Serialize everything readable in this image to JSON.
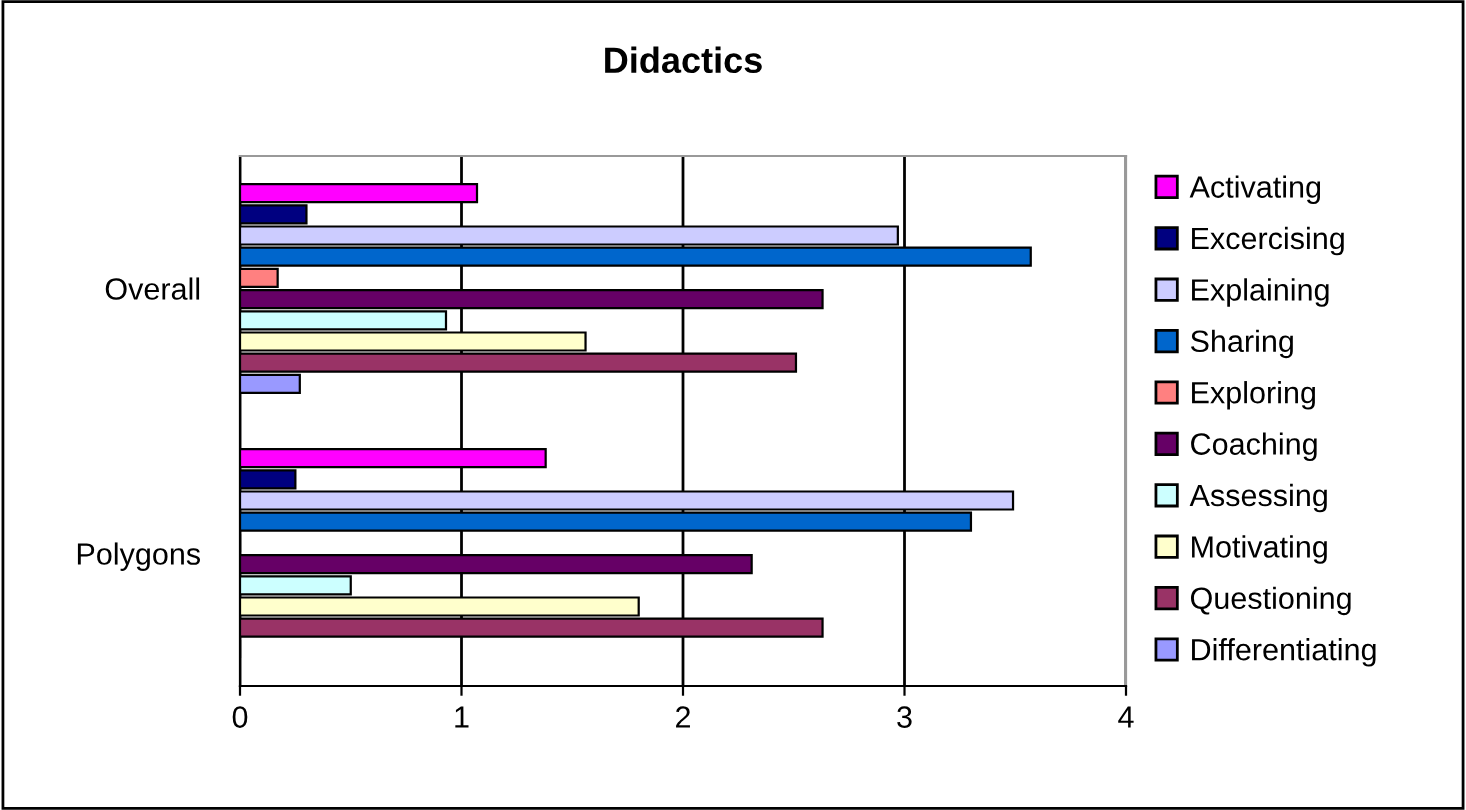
{
  "chart_data": {
    "type": "bar",
    "orientation": "horizontal",
    "title": "Didactics",
    "categories": [
      "Overall",
      "Polygons"
    ],
    "series": [
      {
        "name": "Activating",
        "color": "#ff00ff",
        "values": [
          1.07,
          1.38
        ]
      },
      {
        "name": "Excercising",
        "color": "#000080",
        "values": [
          0.3,
          0.25
        ]
      },
      {
        "name": "Explaining",
        "color": "#ccccff",
        "values": [
          2.97,
          3.49
        ]
      },
      {
        "name": "Sharing",
        "color": "#0066cc",
        "values": [
          3.57,
          3.3
        ]
      },
      {
        "name": "Exploring",
        "color": "#ff8080",
        "values": [
          0.17,
          0
        ]
      },
      {
        "name": "Coaching",
        "color": "#660066",
        "values": [
          2.63,
          2.31
        ]
      },
      {
        "name": "Assessing",
        "color": "#ccffff",
        "values": [
          0.93,
          0.5
        ]
      },
      {
        "name": "Motivating",
        "color": "#ffffcc",
        "values": [
          1.56,
          1.8
        ]
      },
      {
        "name": "Questioning",
        "color": "#993366",
        "values": [
          2.51,
          2.63
        ]
      },
      {
        "name": "Differentiating",
        "color": "#9999ff",
        "values": [
          0.27,
          0
        ]
      }
    ],
    "xlim": [
      0,
      4
    ],
    "xticks": [
      0,
      1,
      2,
      3,
      4
    ],
    "grid": "x",
    "legend": "right"
  }
}
